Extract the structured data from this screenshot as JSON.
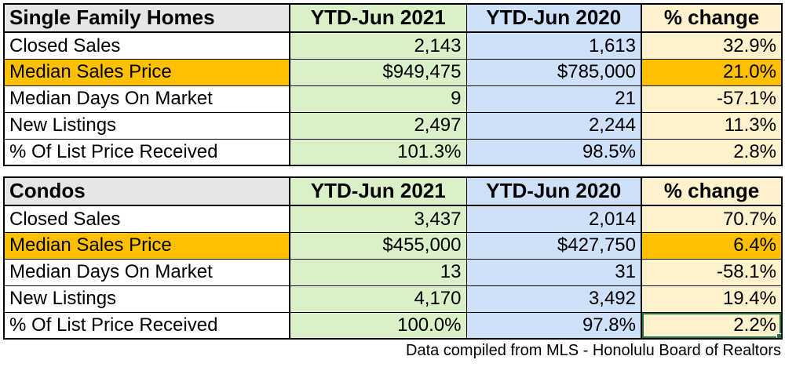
{
  "colors": {
    "title_gray": "#e7e6e6",
    "col_2021_green": "#d9f0c9",
    "col_2020_blue": "#cfe0f9",
    "col_change_tan": "#fff2cc",
    "highlight_orange": "#ffc000",
    "selection_green": "#217346",
    "grid_black": "#000000"
  },
  "tables": [
    {
      "title": "Single Family Homes",
      "columns": [
        "YTD-Jun 2021",
        "YTD-Jun 2020",
        "% change"
      ],
      "rows": [
        {
          "label": "Closed Sales",
          "ytd_2021": "2,143",
          "ytd_2020": "1,613",
          "change": "32.9%"
        },
        {
          "label": "Median Sales Price",
          "ytd_2021": "$949,475",
          "ytd_2020": "$785,000",
          "change": "21.0%",
          "highlighted": true
        },
        {
          "label": "Median Days On Market",
          "ytd_2021": "9",
          "ytd_2020": "21",
          "change": "-57.1%"
        },
        {
          "label": "New Listings",
          "ytd_2021": "2,497",
          "ytd_2020": "2,244",
          "change": "11.3%"
        },
        {
          "label": "% Of List Price Received",
          "ytd_2021": "101.3%",
          "ytd_2020": "98.5%",
          "change": "2.8%"
        }
      ]
    },
    {
      "title": "Condos",
      "columns": [
        "YTD-Jun 2021",
        "YTD-Jun 2020",
        "% change"
      ],
      "rows": [
        {
          "label": "Closed Sales",
          "ytd_2021": "3,437",
          "ytd_2020": "2,014",
          "change": "70.7%"
        },
        {
          "label": "Median Sales Price",
          "ytd_2021": "$455,000",
          "ytd_2020": "$427,750",
          "change": "6.4%",
          "highlighted": true
        },
        {
          "label": "Median Days On Market",
          "ytd_2021": "13",
          "ytd_2020": "31",
          "change": "-58.1%"
        },
        {
          "label": "New Listings",
          "ytd_2021": "4,170",
          "ytd_2020": "3,492",
          "change": "19.4%"
        },
        {
          "label": "% Of List Price Received",
          "ytd_2021": "100.0%",
          "ytd_2020": "97.8%",
          "change": "2.2%",
          "selected": true
        }
      ]
    }
  ],
  "footer": {
    "note": "Data compiled from MLS - Honolulu Board of Realtors"
  }
}
